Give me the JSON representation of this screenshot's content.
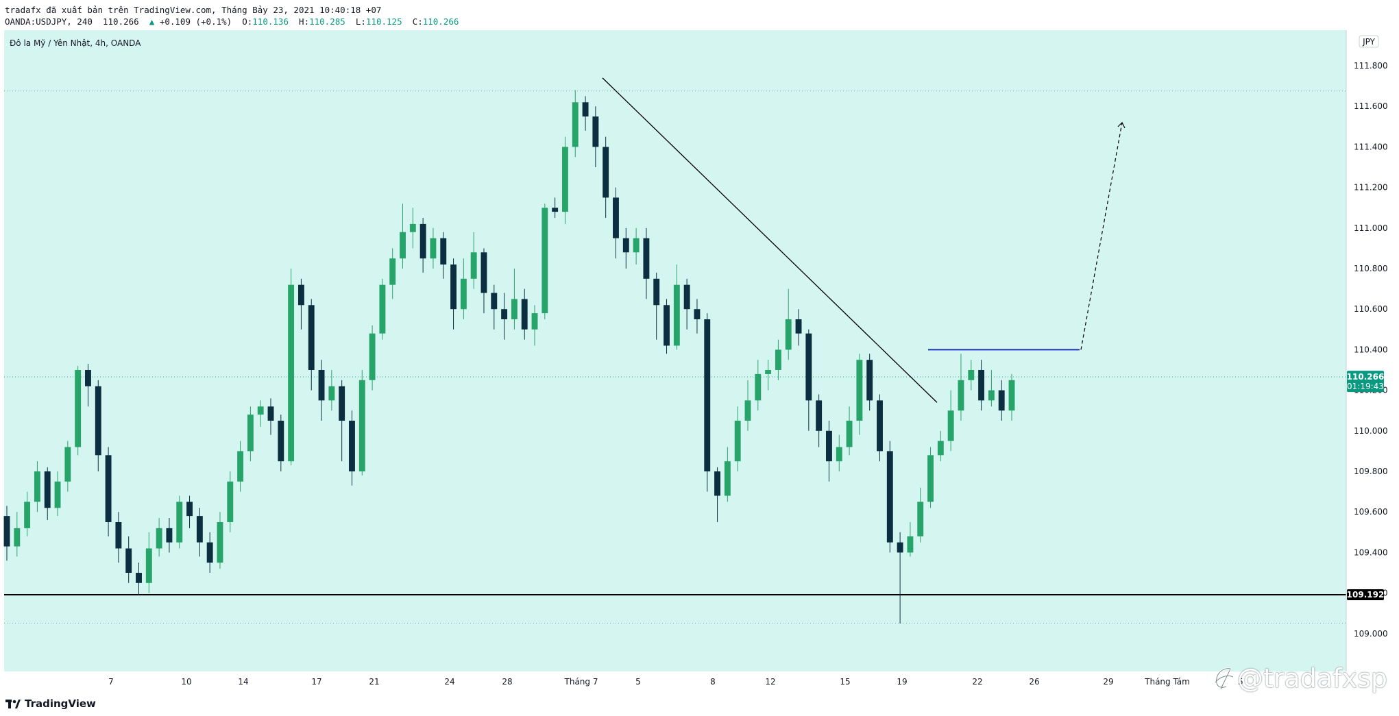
{
  "header": {
    "line1": "tradafx đã xuất bản trên TradingView.com, Tháng Bảy 23, 2021 10:40:18 +07",
    "symbol": "OANDA:USDJPY, 240",
    "last": "110.266",
    "change": "+0.109 (+0.1%)",
    "o_label": "O:",
    "o": "110.136",
    "h_label": "H:",
    "h": "110.285",
    "l_label": "L:",
    "l": "110.125",
    "c_label": "C:",
    "c": "110.266"
  },
  "chart_title": "Đô la Mỹ / Yên Nhật, 4h, OANDA",
  "currency_badge": "JPY",
  "price_label": {
    "price": "110.266",
    "countdown": "01:19:43"
  },
  "support_label": "109.192",
  "logo_text": "TradingView",
  "watermark": "@tradafxsp",
  "colors": {
    "background": "#d5f5f0",
    "up": "#26a46a",
    "down": "#0b2e40",
    "accent": "#089981",
    "blue_line": "#1a2fb8"
  },
  "chart_data": {
    "type": "candlestick",
    "title": "Đô la Mỹ / Yên Nhật, 4h, OANDA",
    "ylim": [
      108.8,
      111.95
    ],
    "y_ticks": [
      "111.800",
      "111.600",
      "111.400",
      "111.200",
      "111.000",
      "110.800",
      "110.600",
      "110.400",
      "110.200",
      "110.000",
      "109.800",
      "109.600",
      "109.400",
      "109.200",
      "109.000"
    ],
    "x_ticks": [
      "7",
      "10",
      "14",
      "17",
      "21",
      "24",
      "28",
      "Tháng 7",
      "5",
      "8",
      "12",
      "15",
      "19",
      "22",
      "26",
      "29",
      "Tháng Tám",
      "5"
    ],
    "last_price": 110.266,
    "annotations": [
      {
        "type": "horizontal_line",
        "price": 109.192,
        "color": "#000000"
      },
      {
        "type": "dotted_line",
        "price": 111.676
      },
      {
        "type": "dotted_line",
        "price": 109.052
      },
      {
        "type": "trendline",
        "from": {
          "date": "Tháng 7 3",
          "price": 111.74
        },
        "to": {
          "date": "20",
          "price": 110.14
        }
      },
      {
        "type": "horizontal_segment",
        "price": 110.4,
        "color": "#1a2fb8"
      },
      {
        "type": "dashed_arrow",
        "from_price": 110.4,
        "to_price": 111.52
      }
    ],
    "candles": [
      [
        109.58,
        109.43,
        109.63,
        109.36
      ],
      [
        109.43,
        109.52,
        109.6,
        109.38
      ],
      [
        109.52,
        109.65,
        109.7,
        109.48
      ],
      [
        109.65,
        109.8,
        109.85,
        109.6
      ],
      [
        109.8,
        109.62,
        109.82,
        109.56
      ],
      [
        109.62,
        109.75,
        109.8,
        109.58
      ],
      [
        109.75,
        109.92,
        109.95,
        109.7
      ],
      [
        109.92,
        110.3,
        110.32,
        109.88
      ],
      [
        110.3,
        110.22,
        110.33,
        110.12
      ],
      [
        110.22,
        109.88,
        110.25,
        109.8
      ],
      [
        109.88,
        109.55,
        109.92,
        109.48
      ],
      [
        109.55,
        109.42,
        109.6,
        109.35
      ],
      [
        109.42,
        109.3,
        109.48,
        109.25
      ],
      [
        109.3,
        109.25,
        109.35,
        109.19
      ],
      [
        109.25,
        109.42,
        109.5,
        109.2
      ],
      [
        109.42,
        109.52,
        109.57,
        109.38
      ],
      [
        109.52,
        109.45,
        109.57,
        109.4
      ],
      [
        109.45,
        109.65,
        109.68,
        109.42
      ],
      [
        109.65,
        109.58,
        109.68,
        109.52
      ],
      [
        109.58,
        109.45,
        109.62,
        109.38
      ],
      [
        109.45,
        109.35,
        109.5,
        109.3
      ],
      [
        109.35,
        109.55,
        109.6,
        109.32
      ],
      [
        109.55,
        109.75,
        109.8,
        109.5
      ],
      [
        109.75,
        109.9,
        109.95,
        109.7
      ],
      [
        109.9,
        110.08,
        110.12,
        109.85
      ],
      [
        110.08,
        110.12,
        110.15,
        110.02
      ],
      [
        110.12,
        110.05,
        110.16,
        109.98
      ],
      [
        110.05,
        109.85,
        110.08,
        109.8
      ],
      [
        109.85,
        110.72,
        110.8,
        109.83
      ],
      [
        110.72,
        110.62,
        110.75,
        110.5
      ],
      [
        110.62,
        110.3,
        110.65,
        110.2
      ],
      [
        110.3,
        110.15,
        110.35,
        110.05
      ],
      [
        110.15,
        110.22,
        110.3,
        110.1
      ],
      [
        110.22,
        110.05,
        110.25,
        109.85
      ],
      [
        110.05,
        109.8,
        110.1,
        109.73
      ],
      [
        109.8,
        110.25,
        110.3,
        109.78
      ],
      [
        110.25,
        110.48,
        110.52,
        110.2
      ],
      [
        110.48,
        110.72,
        110.75,
        110.45
      ],
      [
        110.72,
        110.85,
        110.9,
        110.65
      ],
      [
        110.85,
        110.98,
        111.12,
        110.8
      ],
      [
        110.98,
        111.02,
        111.1,
        110.9
      ],
      [
        111.02,
        110.85,
        111.05,
        110.78
      ],
      [
        110.85,
        110.95,
        111.0,
        110.8
      ],
      [
        110.95,
        110.82,
        110.98,
        110.75
      ],
      [
        110.82,
        110.6,
        110.85,
        110.5
      ],
      [
        110.6,
        110.75,
        110.85,
        110.55
      ],
      [
        110.75,
        110.88,
        110.98,
        110.7
      ],
      [
        110.88,
        110.68,
        110.9,
        110.58
      ],
      [
        110.68,
        110.6,
        110.72,
        110.5
      ],
      [
        110.6,
        110.55,
        110.68,
        110.45
      ],
      [
        110.55,
        110.65,
        110.8,
        110.5
      ],
      [
        110.65,
        110.5,
        110.7,
        110.45
      ],
      [
        110.5,
        110.58,
        110.62,
        110.42
      ],
      [
        110.58,
        111.1,
        111.12,
        110.55
      ],
      [
        111.1,
        111.08,
        111.15,
        111.05
      ],
      [
        111.08,
        111.4,
        111.45,
        111.02
      ],
      [
        111.4,
        111.62,
        111.68,
        111.35
      ],
      [
        111.62,
        111.55,
        111.65,
        111.48
      ],
      [
        111.55,
        111.4,
        111.6,
        111.3
      ],
      [
        111.4,
        111.15,
        111.45,
        111.05
      ],
      [
        111.15,
        110.95,
        111.2,
        110.85
      ],
      [
        110.95,
        110.88,
        111.0,
        110.8
      ],
      [
        110.88,
        110.95,
        111.0,
        110.82
      ],
      [
        110.95,
        110.75,
        111.0,
        110.65
      ],
      [
        110.75,
        110.62,
        110.78,
        110.45
      ],
      [
        110.62,
        110.42,
        110.65,
        110.38
      ],
      [
        110.42,
        110.72,
        110.82,
        110.4
      ],
      [
        110.72,
        110.6,
        110.75,
        110.5
      ],
      [
        110.6,
        110.55,
        110.65,
        110.48
      ],
      [
        110.55,
        109.8,
        110.58,
        109.7
      ],
      [
        109.8,
        109.68,
        109.82,
        109.55
      ],
      [
        109.68,
        109.85,
        109.92,
        109.65
      ],
      [
        109.85,
        110.05,
        110.12,
        109.8
      ],
      [
        110.05,
        110.15,
        110.25,
        110.0
      ],
      [
        110.15,
        110.28,
        110.35,
        110.1
      ],
      [
        110.28,
        110.3,
        110.35,
        110.2
      ],
      [
        110.3,
        110.4,
        110.45,
        110.25
      ],
      [
        110.4,
        110.55,
        110.7,
        110.35
      ],
      [
        110.55,
        110.48,
        110.6,
        110.42
      ],
      [
        110.48,
        110.15,
        110.5,
        110.0
      ],
      [
        110.15,
        110.0,
        110.18,
        109.92
      ],
      [
        110.0,
        109.85,
        110.05,
        109.75
      ],
      [
        109.85,
        109.92,
        109.98,
        109.8
      ],
      [
        109.92,
        110.05,
        110.12,
        109.88
      ],
      [
        110.05,
        110.35,
        110.38,
        109.98
      ],
      [
        110.35,
        110.15,
        110.38,
        110.1
      ],
      [
        110.15,
        109.9,
        110.18,
        109.85
      ],
      [
        109.9,
        109.45,
        109.95,
        109.4
      ],
      [
        109.45,
        109.4,
        109.5,
        109.05
      ],
      [
        109.4,
        109.48,
        109.55,
        109.38
      ],
      [
        109.48,
        109.65,
        109.72,
        109.45
      ],
      [
        109.65,
        109.88,
        109.92,
        109.62
      ],
      [
        109.88,
        109.95,
        110.0,
        109.85
      ],
      [
        109.95,
        110.1,
        110.2,
        109.9
      ],
      [
        110.1,
        110.25,
        110.38,
        110.05
      ],
      [
        110.25,
        110.3,
        110.35,
        110.2
      ],
      [
        110.3,
        110.15,
        110.35,
        110.1
      ],
      [
        110.15,
        110.2,
        110.3,
        110.12
      ],
      [
        110.2,
        110.1,
        110.25,
        110.05
      ],
      [
        110.1,
        110.25,
        110.28,
        110.05
      ]
    ]
  }
}
